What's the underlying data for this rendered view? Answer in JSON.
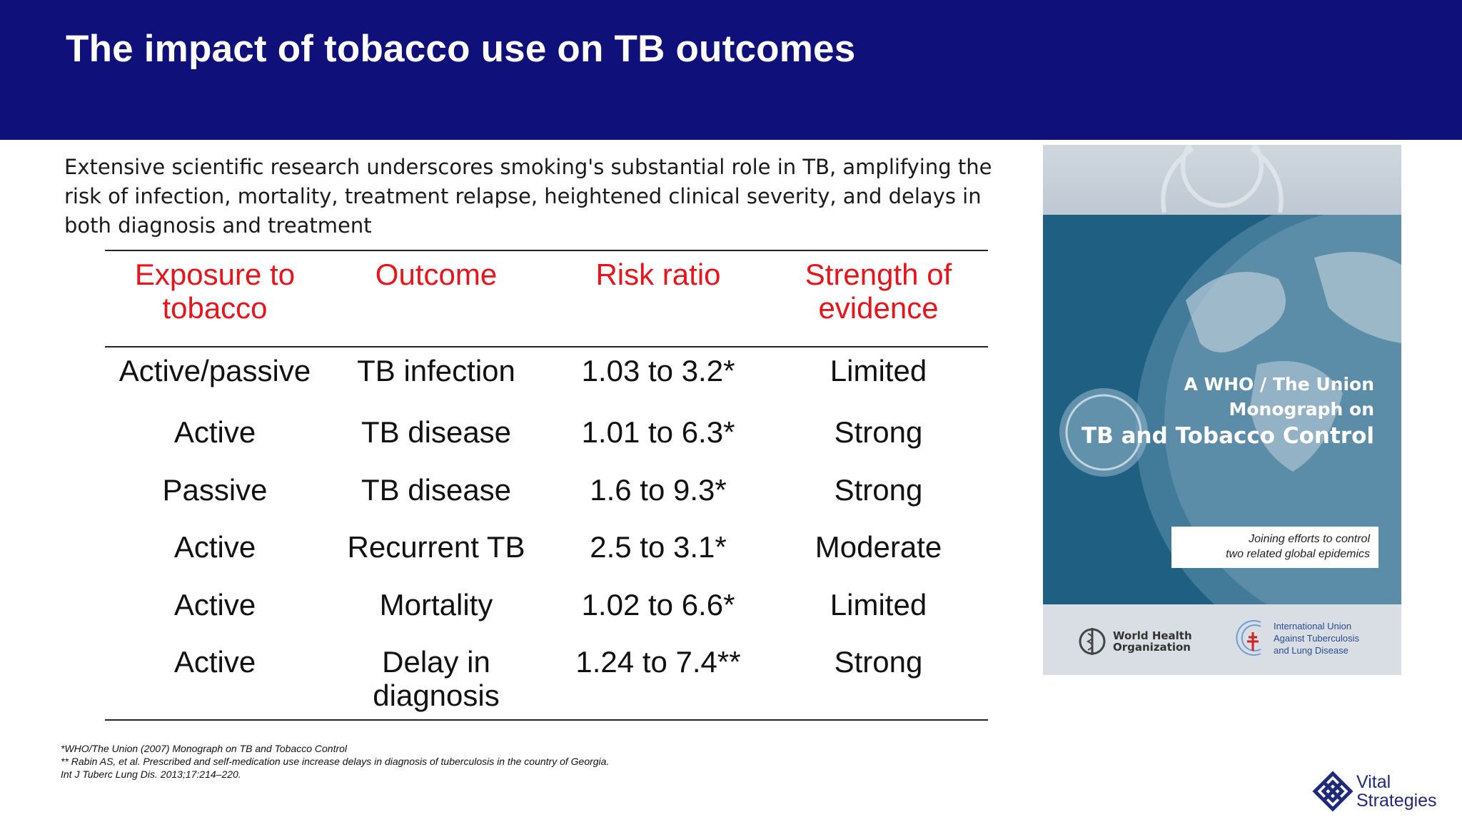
{
  "header": {
    "title": "The impact of tobacco use on TB outcomes"
  },
  "intro": "Extensive scientific research underscores smoking's substantial role in TB, amplifying the risk of infection, mortality, treatment relapse, heightened clinical severity, and delays in both diagnosis and treatment",
  "table": {
    "headers": [
      "Exposure to tobacco",
      "Outcome",
      "Risk ratio",
      "Strength of evidence"
    ],
    "rows": [
      [
        "Active/passive",
        "TB infection",
        "1.03 to 3.2*",
        "Limited"
      ],
      [
        "Active",
        "TB disease",
        "1.01 to 6.3*",
        "Strong"
      ],
      [
        "Passive",
        "TB disease",
        "1.6 to 9.3*",
        "Strong"
      ],
      [
        "Active",
        "Recurrent TB",
        "2.5 to 3.1*",
        "Moderate"
      ],
      [
        "Active",
        "Mortality",
        "1.02 to 6.6*",
        "Limited"
      ],
      [
        "Active",
        "Delay in diagnosis",
        "1.24 to 7.4**",
        "Strong"
      ]
    ]
  },
  "footnotes": [
    "*WHO/The Union (2007) Monograph on TB and Tobacco Control",
    "** Rabin AS, et al. Prescribed and self-medication use increase delays in diagnosis of tuberculosis in the country of Georgia.",
    "Int J Tuberc Lung Dis. 2013;17:214–220."
  ],
  "cover": {
    "title_line1": "A WHO / The Union",
    "title_line2": "Monograph on",
    "title_line3": "TB and Tobacco Control",
    "tagline_line1": "Joining efforts to control",
    "tagline_line2": "two related global epidemics",
    "who_line1": "World Health",
    "who_line2": "Organization",
    "union_line1": "International Union",
    "union_line2": "Against Tuberculosis",
    "union_line3": "and Lung Disease"
  },
  "logo": {
    "line1": "Vital",
    "line2": "Strategies"
  },
  "colors": {
    "header_bg": "#10107a",
    "table_header": "#e8141a",
    "cover_blue": "#1f5f82",
    "logo": "#1f2a78"
  }
}
